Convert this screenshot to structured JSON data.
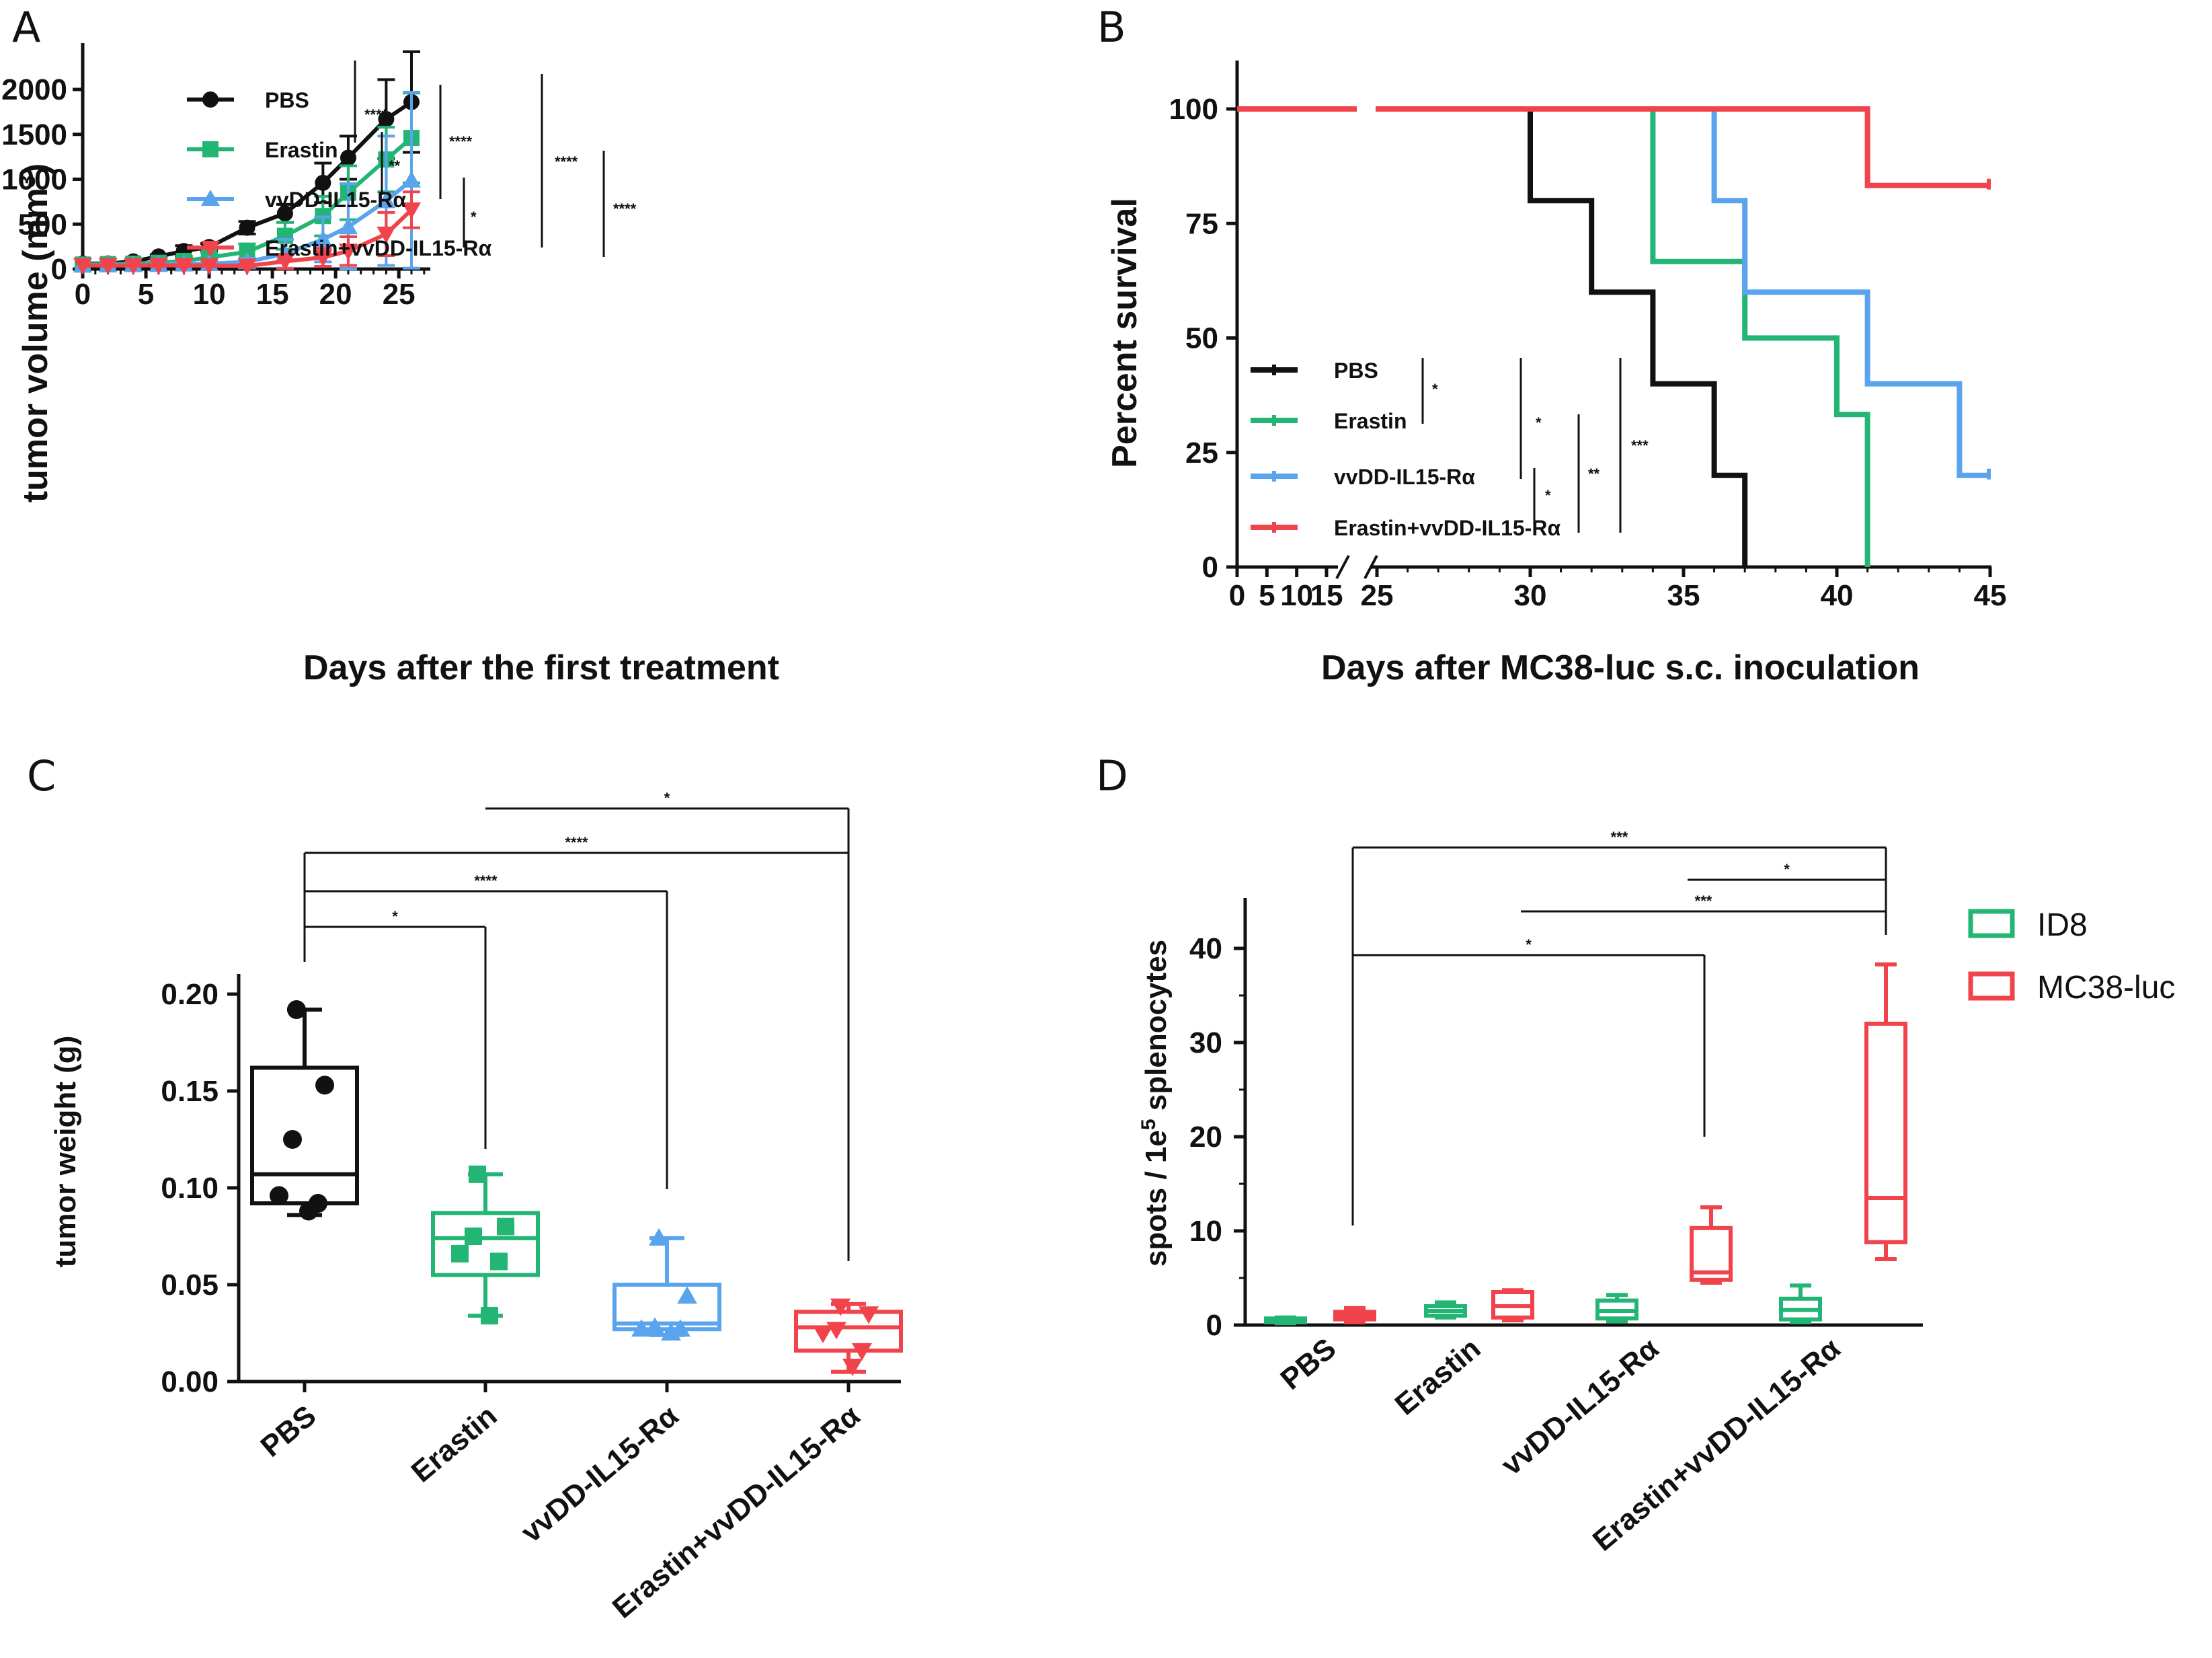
{
  "colors": {
    "PBS": "#111111",
    "Erastin": "#23b574",
    "vvDD": "#5aa4ee",
    "Combo": "#f0434b"
  },
  "chart_data": [
    {
      "panel": "A",
      "type": "line",
      "xlabel": "Days after the first treatment",
      "ylabel": "tumor volume (mm3)",
      "xlim": [
        0,
        28
      ],
      "ylim": [
        0,
        2500
      ],
      "xticks": [
        0,
        5,
        10,
        15,
        20,
        25
      ],
      "yticks": [
        0,
        500,
        1000,
        1500,
        2000
      ],
      "series": [
        {
          "name": "PBS",
          "color_key": "PBS",
          "marker": "circle",
          "x": [
            0,
            2,
            4,
            6,
            8,
            10,
            13,
            16,
            19,
            21,
            24,
            26
          ],
          "y": [
            60,
            62,
            85,
            140,
            200,
            245,
            460,
            620,
            960,
            1240,
            1670,
            1860
          ],
          "err": [
            0,
            0,
            10,
            20,
            60,
            40,
            70,
            100,
            220,
            240,
            440,
            560
          ]
        },
        {
          "name": "Erastin",
          "color_key": "Erastin",
          "marker": "square",
          "x": [
            0,
            2,
            4,
            6,
            8,
            10,
            13,
            16,
            19,
            21,
            24,
            26
          ],
          "y": [
            50,
            55,
            60,
            70,
            90,
            130,
            190,
            370,
            590,
            850,
            1220,
            1460
          ],
          "err": [
            0,
            0,
            10,
            20,
            30,
            50,
            90,
            150,
            220,
            300,
            360,
            500
          ]
        },
        {
          "name": "vvDD-IL15-Rα",
          "color_key": "vvDD",
          "marker": "triangle-up",
          "x": [
            0,
            2,
            4,
            6,
            8,
            10,
            13,
            16,
            19,
            21,
            24,
            26
          ],
          "y": [
            45,
            45,
            48,
            50,
            55,
            60,
            80,
            170,
            330,
            470,
            760,
            990
          ],
          "err": [
            0,
            0,
            10,
            15,
            20,
            25,
            40,
            160,
            250,
            480,
            720,
            980
          ]
        },
        {
          "name": "Erastin+vvDD-IL15-Rα",
          "color_key": "Combo",
          "marker": "triangle-down",
          "x": [
            0,
            2,
            4,
            6,
            8,
            10,
            13,
            16,
            19,
            21,
            24,
            26
          ],
          "y": [
            40,
            40,
            40,
            42,
            40,
            38,
            35,
            85,
            130,
            200,
            390,
            660
          ],
          "err": [
            0,
            0,
            8,
            10,
            10,
            10,
            15,
            80,
            100,
            160,
            240,
            200
          ]
        }
      ],
      "legend": [
        "PBS",
        "Erastin",
        "vvDD-IL15-Rα",
        "Erastin+vvDD-IL15-Rα"
      ],
      "significance": [
        "****",
        "**",
        "****",
        "*",
        "****",
        "****"
      ]
    },
    {
      "panel": "B",
      "type": "line",
      "subtype": "kaplan-meier",
      "xlabel": "Days after MC38-luc s.c. inoculation",
      "ylabel": "Percent survival",
      "ylim": [
        0,
        110
      ],
      "yticks": [
        0,
        25,
        50,
        75,
        100
      ],
      "xticks": [
        "0",
        "5",
        "10",
        "15",
        "25",
        "30",
        "35",
        "40",
        "45"
      ],
      "axis_break": "between 15 and 25",
      "series": [
        {
          "name": "PBS",
          "color_key": "PBS",
          "x": [
            0,
            30,
            32,
            34,
            36,
            37
          ],
          "y": [
            100,
            80,
            60,
            40,
            20,
            0
          ]
        },
        {
          "name": "Erastin",
          "color_key": "Erastin",
          "x": [
            0,
            34,
            37,
            40,
            41
          ],
          "y": [
            100,
            66.7,
            50,
            33.3,
            0
          ]
        },
        {
          "name": "vvDD-IL15-Rα",
          "color_key": "vvDD",
          "x": [
            0,
            36,
            37,
            41,
            44,
            45
          ],
          "y": [
            100,
            80,
            60,
            40,
            20,
            20
          ]
        },
        {
          "name": "Erastin+vvDD-IL15-Rα",
          "color_key": "Combo",
          "x": [
            0,
            41,
            45
          ],
          "y": [
            100,
            83.3,
            83.3
          ]
        }
      ],
      "legend": [
        "PBS",
        "Erastin",
        "vvDD-IL15-Rα",
        "Erastin+vvDD-IL15-Rα"
      ],
      "significance": [
        "*",
        "*",
        "*",
        "**",
        "***"
      ]
    },
    {
      "panel": "C",
      "type": "box",
      "ylabel": "tumor weight (g)",
      "ylim": [
        0,
        0.21
      ],
      "yticks": [
        "0.00",
        "0.05",
        "0.10",
        "0.15",
        "0.20"
      ],
      "categories": [
        "PBS",
        "Erastin",
        "vvDD-IL15-Rα",
        "Erastin+vvDD-IL15-Rα"
      ],
      "boxes": [
        {
          "color_key": "PBS",
          "min": 0.086,
          "q1": 0.092,
          "median": 0.107,
          "q3": 0.162,
          "max": 0.192,
          "points": [
            0.192,
            0.153,
            0.125,
            0.096,
            0.092,
            0.088
          ]
        },
        {
          "color_key": "Erastin",
          "min": 0.034,
          "q1": 0.055,
          "median": 0.074,
          "q3": 0.087,
          "max": 0.107,
          "points": [
            0.107,
            0.08,
            0.075,
            0.066,
            0.062,
            0.034
          ]
        },
        {
          "color_key": "vvDD",
          "min": 0.024,
          "q1": 0.027,
          "median": 0.03,
          "q3": 0.05,
          "max": 0.074,
          "points": [
            0.074,
            0.044,
            0.028,
            0.027,
            0.027,
            0.025
          ]
        },
        {
          "color_key": "Combo",
          "min": 0.005,
          "q1": 0.016,
          "median": 0.028,
          "q3": 0.036,
          "max": 0.04,
          "points": [
            0.039,
            0.035,
            0.027,
            0.025,
            0.016,
            0.008
          ]
        }
      ],
      "brackets": [
        {
          "from": 0,
          "to": 1,
          "label": "*"
        },
        {
          "from": 0,
          "to": 2,
          "label": "****"
        },
        {
          "from": 0,
          "to": 3,
          "label": "****"
        },
        {
          "from": 1,
          "to": 3,
          "label": "*"
        }
      ]
    },
    {
      "panel": "D",
      "type": "box",
      "ylabel": "spots / 1e5 splenocytes",
      "ylim": [
        0,
        45
      ],
      "yticks": [
        "0",
        "10",
        "20",
        "30",
        "40"
      ],
      "categories": [
        "PBS",
        "Erastin",
        "vvDD-IL15-Rα",
        "Erastin+vvDD-IL15-Rα"
      ],
      "legend": [
        "ID8",
        "MC38-luc"
      ],
      "boxes": [
        {
          "group": 0,
          "color_key": "Erastin",
          "min": 0.2,
          "q1": 0.3,
          "median": 0.5,
          "q3": 0.7,
          "max": 0.8
        },
        {
          "group": 0,
          "color_key": "Combo",
          "min": 0.3,
          "q1": 0.6,
          "median": 1.0,
          "q3": 1.4,
          "max": 1.8
        },
        {
          "group": 1,
          "color_key": "Erastin",
          "min": 0.8,
          "q1": 1.0,
          "median": 1.5,
          "q3": 2.0,
          "max": 2.4
        },
        {
          "group": 1,
          "color_key": "Combo",
          "min": 0.5,
          "q1": 0.8,
          "median": 2.0,
          "q3": 3.5,
          "max": 3.7
        },
        {
          "group": 2,
          "color_key": "Erastin",
          "min": 0.4,
          "q1": 0.7,
          "median": 1.5,
          "q3": 2.6,
          "max": 3.2
        },
        {
          "group": 2,
          "color_key": "Combo",
          "min": 4.5,
          "q1": 4.8,
          "median": 5.6,
          "q3": 10.3,
          "max": 12.5
        },
        {
          "group": 3,
          "color_key": "Erastin",
          "min": 0.3,
          "q1": 0.6,
          "median": 1.6,
          "q3": 2.8,
          "max": 4.2
        },
        {
          "group": 3,
          "color_key": "Combo",
          "min": 7.0,
          "q1": 8.8,
          "median": 13.5,
          "q3": 32.0,
          "max": 38.3
        }
      ],
      "brackets": [
        {
          "label": "***"
        },
        {
          "label": "*"
        },
        {
          "label": "***"
        },
        {
          "label": "*"
        }
      ]
    }
  ],
  "panels": {
    "A": "A",
    "B": "B",
    "C": "C",
    "D": "D"
  },
  "legend_texts": {
    "PBS": "PBS",
    "Erastin": "Erastin",
    "vvDD": "vvDD-IL15-Rα",
    "Combo": "Erastin+vvDD-IL15-Rα",
    "ID8": "ID8",
    "MC38": "MC38-luc"
  }
}
